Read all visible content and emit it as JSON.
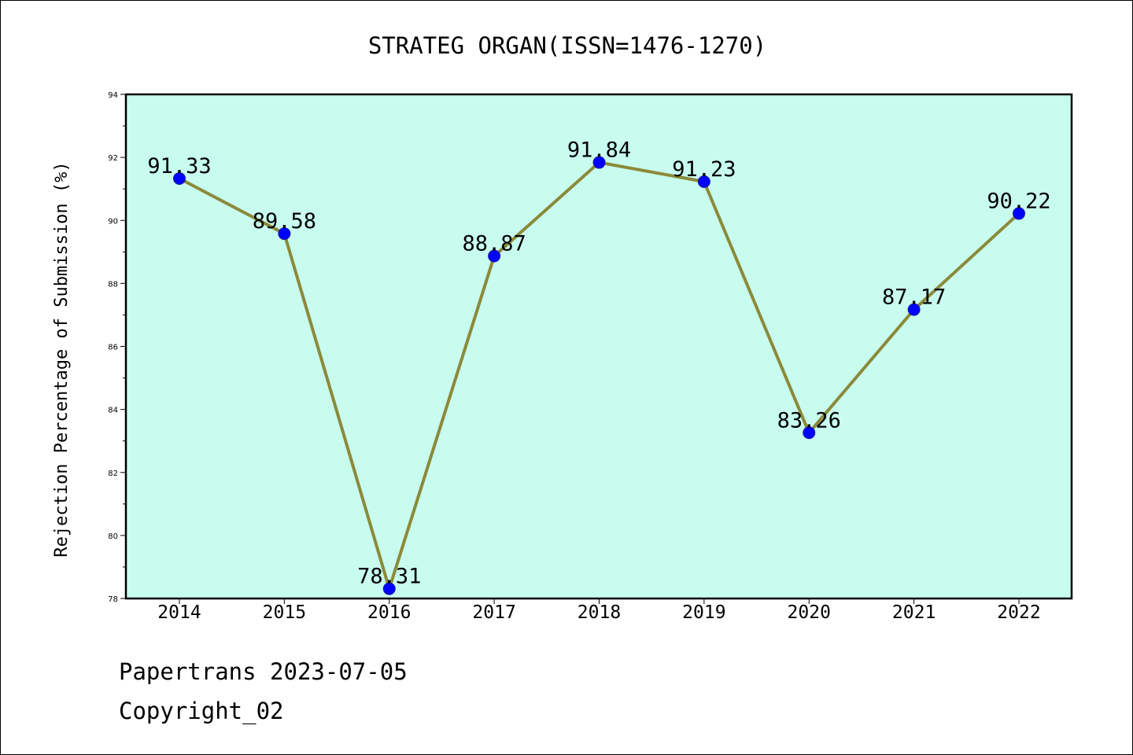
{
  "chart_data": {
    "type": "line",
    "title": "STRATEG ORGAN(ISSN=1476-1270)",
    "xlabel": "",
    "ylabel": "Rejection Percentage of Submission (%)",
    "categories": [
      "2014",
      "2015",
      "2016",
      "2017",
      "2018",
      "2019",
      "2020",
      "2021",
      "2022"
    ],
    "series": [
      {
        "values": [
          91.33,
          89.58,
          78.31,
          88.87,
          91.84,
          91.23,
          83.26,
          87.17,
          90.22
        ]
      }
    ],
    "data_labels": [
      "91.33",
      "89.58",
      "78.31",
      "88.87",
      "91.84",
      "91.23",
      "83.26",
      "87.17",
      "90.22"
    ],
    "ylim": [
      78,
      94
    ],
    "yticks": [
      "78",
      "80",
      "82",
      "84",
      "86",
      "88",
      "90",
      "92",
      "94"
    ],
    "grid": false,
    "legend": "none",
    "colors": {
      "plot_background": "#c8fcef",
      "line": "#8b8a3a",
      "marker": "#0000ff",
      "marker_edge": "#1a1aa0"
    }
  },
  "footer": {
    "line1": "Papertrans 2023-07-05",
    "line2": "Copyright_02"
  }
}
